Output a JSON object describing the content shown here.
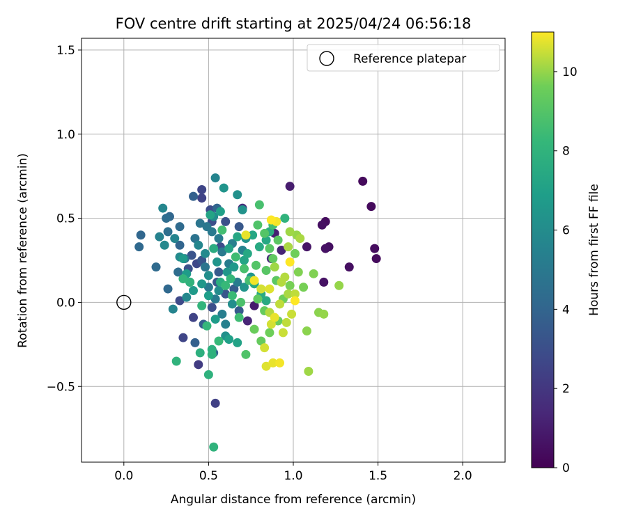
{
  "chart_data": {
    "type": "scatter",
    "title": "FOV centre drift starting at 2025/04/24 06:56:18",
    "xlabel": "Angular distance from reference (arcmin)",
    "ylabel": "Rotation from reference (arcmin)",
    "xlim": [
      -0.25,
      2.25
    ],
    "ylim": [
      -0.95,
      1.57
    ],
    "xticks": [
      0.0,
      0.5,
      1.0,
      1.5,
      2.0
    ],
    "xtick_labels": [
      "0.0",
      "0.5",
      "1.0",
      "1.5",
      "2.0"
    ],
    "yticks": [
      -0.5,
      0.0,
      0.5,
      1.0,
      1.5
    ],
    "ytick_labels": [
      "−0.5",
      "0.0",
      "0.5",
      "1.0",
      "1.5"
    ],
    "grid": true,
    "legend": {
      "placement": "top-right",
      "entries": [
        "Reference platepar"
      ]
    },
    "reference": {
      "x": 0.0,
      "y": 0.0,
      "label": "Reference platepar"
    },
    "colorbar": {
      "label": "Hours from first FF file",
      "colormap": "viridis",
      "range": [
        0,
        11
      ],
      "ticks": [
        0,
        2,
        4,
        6,
        8,
        10
      ],
      "tick_labels": [
        "0",
        "2",
        "4",
        "6",
        "8",
        "10"
      ]
    },
    "series": [
      {
        "points": [
          {
            "x": 1.41,
            "y": 0.72,
            "h": 0.3
          },
          {
            "x": 1.46,
            "y": 0.57,
            "h": 0.3
          },
          {
            "x": 1.48,
            "y": 0.32,
            "h": 0.4
          },
          {
            "x": 1.49,
            "y": 0.26,
            "h": 0.3
          },
          {
            "x": 1.33,
            "y": 0.21,
            "h": 0.5
          },
          {
            "x": 1.19,
            "y": 0.48,
            "h": 0.4
          },
          {
            "x": 1.17,
            "y": 0.46,
            "h": 0.5
          },
          {
            "x": 1.21,
            "y": 0.33,
            "h": 0.5
          },
          {
            "x": 1.19,
            "y": 0.32,
            "h": 0.6
          },
          {
            "x": 1.18,
            "y": 0.12,
            "h": 0.6
          },
          {
            "x": 1.08,
            "y": 0.33,
            "h": 0.7
          },
          {
            "x": 0.98,
            "y": 0.69,
            "h": 1.0
          },
          {
            "x": 0.93,
            "y": 0.31,
            "h": 1.2
          },
          {
            "x": 0.89,
            "y": 0.41,
            "h": 1.1
          },
          {
            "x": 0.77,
            "y": -0.02,
            "h": 0.9
          },
          {
            "x": 0.73,
            "y": -0.11,
            "h": 1.3
          },
          {
            "x": 0.87,
            "y": 0.26,
            "h": 1.5
          },
          {
            "x": 0.7,
            "y": 0.56,
            "h": 1.6
          },
          {
            "x": 0.54,
            "y": -0.6,
            "h": 2.4
          },
          {
            "x": 0.44,
            "y": -0.37,
            "h": 2.2
          },
          {
            "x": 0.35,
            "y": -0.21,
            "h": 2.6
          },
          {
            "x": 0.41,
            "y": -0.09,
            "h": 2.5
          },
          {
            "x": 0.46,
            "y": 0.67,
            "h": 2.6
          },
          {
            "x": 0.46,
            "y": 0.62,
            "h": 2.5
          },
          {
            "x": 0.51,
            "y": 0.55,
            "h": 2.9
          },
          {
            "x": 0.33,
            "y": 0.01,
            "h": 2.8
          },
          {
            "x": 0.52,
            "y": 0.48,
            "h": 3.0
          },
          {
            "x": 0.6,
            "y": 0.48,
            "h": 3.1
          },
          {
            "x": 0.43,
            "y": 0.23,
            "h": 2.7
          },
          {
            "x": 0.4,
            "y": 0.28,
            "h": 3.2
          },
          {
            "x": 0.46,
            "y": 0.25,
            "h": 3.3
          },
          {
            "x": 0.38,
            "y": 0.2,
            "h": 3.1
          },
          {
            "x": 0.52,
            "y": -0.03,
            "h": 3.0
          },
          {
            "x": 0.6,
            "y": 0.05,
            "h": 3.3
          },
          {
            "x": 0.57,
            "y": 0.33,
            "h": 2.9
          },
          {
            "x": 0.68,
            "y": 0.45,
            "h": 3.4
          },
          {
            "x": 0.56,
            "y": 0.18,
            "h": 3.5
          },
          {
            "x": 0.65,
            "y": 0.08,
            "h": 3.6
          },
          {
            "x": 0.55,
            "y": 0.12,
            "h": 3.4
          },
          {
            "x": 0.68,
            "y": -0.05,
            "h": 3.5
          },
          {
            "x": 0.47,
            "y": -0.13,
            "h": 3.7
          },
          {
            "x": 0.42,
            "y": -0.24,
            "h": 3.8
          },
          {
            "x": 0.53,
            "y": -0.3,
            "h": 3.9
          },
          {
            "x": 0.41,
            "y": 0.63,
            "h": 3.8
          },
          {
            "x": 0.55,
            "y": 0.56,
            "h": 4.0
          },
          {
            "x": 0.1,
            "y": 0.4,
            "h": 4.1
          },
          {
            "x": 0.09,
            "y": 0.33,
            "h": 4.2
          },
          {
            "x": 0.19,
            "y": 0.21,
            "h": 4.3
          },
          {
            "x": 0.26,
            "y": 0.08,
            "h": 4.2
          },
          {
            "x": 0.33,
            "y": 0.34,
            "h": 4.0
          },
          {
            "x": 0.33,
            "y": 0.45,
            "h": 4.3
          },
          {
            "x": 0.25,
            "y": 0.5,
            "h": 4.4
          },
          {
            "x": 0.27,
            "y": 0.51,
            "h": 4.1
          },
          {
            "x": 0.26,
            "y": 0.42,
            "h": 4.5
          },
          {
            "x": 0.32,
            "y": 0.18,
            "h": 4.4
          },
          {
            "x": 0.36,
            "y": 0.26,
            "h": 4.6
          },
          {
            "x": 0.39,
            "y": 0.12,
            "h": 4.5
          },
          {
            "x": 0.42,
            "y": 0.38,
            "h": 4.7
          },
          {
            "x": 0.45,
            "y": 0.47,
            "h": 4.8
          },
          {
            "x": 0.49,
            "y": 0.45,
            "h": 4.9
          },
          {
            "x": 0.48,
            "y": 0.21,
            "h": 4.8
          },
          {
            "x": 0.52,
            "y": 0.42,
            "h": 5.0
          },
          {
            "x": 0.56,
            "y": 0.38,
            "h": 5.1
          },
          {
            "x": 0.58,
            "y": 0.3,
            "h": 5.0
          },
          {
            "x": 0.62,
            "y": 0.23,
            "h": 5.2
          },
          {
            "x": 0.5,
            "y": 0.09,
            "h": 5.0
          },
          {
            "x": 0.54,
            "y": 0.02,
            "h": 5.1
          },
          {
            "x": 0.58,
            "y": -0.07,
            "h": 5.3
          },
          {
            "x": 0.6,
            "y": -0.13,
            "h": 5.4
          },
          {
            "x": 0.67,
            "y": 0.12,
            "h": 5.2
          },
          {
            "x": 0.64,
            "y": 0.35,
            "h": 5.4
          },
          {
            "x": 0.7,
            "y": 0.31,
            "h": 5.5
          },
          {
            "x": 0.54,
            "y": 0.74,
            "h": 5.6
          },
          {
            "x": 0.3,
            "y": 0.38,
            "h": 5.6
          },
          {
            "x": 0.23,
            "y": 0.56,
            "h": 5.7
          },
          {
            "x": 0.21,
            "y": 0.39,
            "h": 5.5
          },
          {
            "x": 0.24,
            "y": 0.34,
            "h": 5.8
          },
          {
            "x": 0.33,
            "y": 0.27,
            "h": 5.9
          },
          {
            "x": 0.29,
            "y": -0.04,
            "h": 5.6
          },
          {
            "x": 0.37,
            "y": 0.03,
            "h": 5.8
          },
          {
            "x": 0.44,
            "y": 0.34,
            "h": 5.7
          },
          {
            "x": 0.53,
            "y": 0.51,
            "h": 6.0
          },
          {
            "x": 0.48,
            "y": 0.29,
            "h": 5.9
          },
          {
            "x": 0.5,
            "y": 0.16,
            "h": 6.1
          },
          {
            "x": 0.56,
            "y": 0.07,
            "h": 6.0
          },
          {
            "x": 0.6,
            "y": -0.2,
            "h": 6.2
          },
          {
            "x": 0.64,
            "y": -0.01,
            "h": 6.1
          },
          {
            "x": 0.67,
            "y": 0.64,
            "h": 6.2
          },
          {
            "x": 0.7,
            "y": 0.55,
            "h": 6.3
          },
          {
            "x": 0.59,
            "y": 0.68,
            "h": 6.4
          },
          {
            "x": 0.72,
            "y": 0.38,
            "h": 6.3
          },
          {
            "x": 0.55,
            "y": 0.24,
            "h": 6.4
          },
          {
            "x": 0.61,
            "y": 0.18,
            "h": 6.5
          },
          {
            "x": 0.65,
            "y": 0.21,
            "h": 6.6
          },
          {
            "x": 0.71,
            "y": 0.09,
            "h": 6.4
          },
          {
            "x": 0.75,
            "y": 0.15,
            "h": 6.5
          },
          {
            "x": 0.46,
            "y": 0.11,
            "h": 6.6
          },
          {
            "x": 0.41,
            "y": 0.07,
            "h": 6.7
          },
          {
            "x": 0.37,
            "y": 0.17,
            "h": 6.8
          },
          {
            "x": 0.35,
            "y": 0.26,
            "h": 6.7
          },
          {
            "x": 0.5,
            "y": 0.04,
            "h": 6.9
          },
          {
            "x": 0.54,
            "y": -0.1,
            "h": 6.8
          },
          {
            "x": 0.62,
            "y": -0.22,
            "h": 7.0
          },
          {
            "x": 0.67,
            "y": -0.24,
            "h": 7.1
          },
          {
            "x": 0.57,
            "y": 0.54,
            "h": 7.0
          },
          {
            "x": 0.51,
            "y": 0.52,
            "h": 7.2
          },
          {
            "x": 0.62,
            "y": 0.32,
            "h": 7.1
          },
          {
            "x": 0.67,
            "y": 0.39,
            "h": 7.3
          },
          {
            "x": 0.71,
            "y": 0.25,
            "h": 7.2
          },
          {
            "x": 0.73,
            "y": 0.29,
            "h": 7.4
          },
          {
            "x": 0.76,
            "y": 0.4,
            "h": 7.3
          },
          {
            "x": 0.8,
            "y": 0.33,
            "h": 7.5
          },
          {
            "x": 0.84,
            "y": 0.37,
            "h": 7.4
          },
          {
            "x": 0.77,
            "y": 0.11,
            "h": 7.5
          },
          {
            "x": 0.81,
            "y": 0.05,
            "h": 7.6
          },
          {
            "x": 0.84,
            "y": 0.01,
            "h": 7.5
          },
          {
            "x": 0.86,
            "y": 0.42,
            "h": 7.7
          },
          {
            "x": 0.53,
            "y": 0.32,
            "h": 7.6
          },
          {
            "x": 0.57,
            "y": 0.12,
            "h": 7.7
          },
          {
            "x": 0.52,
            "y": -0.28,
            "h": 7.8
          },
          {
            "x": 0.52,
            "y": -0.31,
            "h": 7.9
          },
          {
            "x": 0.45,
            "y": -0.3,
            "h": 7.8
          },
          {
            "x": 0.5,
            "y": -0.43,
            "h": 7.9
          },
          {
            "x": 0.31,
            "y": -0.35,
            "h": 8.0
          },
          {
            "x": 0.53,
            "y": -0.86,
            "h": 8.0
          },
          {
            "x": 0.35,
            "y": 0.14,
            "h": 8.1
          },
          {
            "x": 0.39,
            "y": 0.12,
            "h": 8.0
          },
          {
            "x": 0.46,
            "y": -0.02,
            "h": 8.1
          },
          {
            "x": 0.49,
            "y": -0.14,
            "h": 8.2
          },
          {
            "x": 0.56,
            "y": -0.23,
            "h": 8.3
          },
          {
            "x": 0.63,
            "y": 0.14,
            "h": 8.2
          },
          {
            "x": 0.6,
            "y": 0.1,
            "h": 8.3
          },
          {
            "x": 0.64,
            "y": 0.04,
            "h": 8.4
          },
          {
            "x": 0.68,
            "y": -0.09,
            "h": 8.5
          },
          {
            "x": 0.58,
            "y": 0.43,
            "h": 8.6
          },
          {
            "x": 0.66,
            "y": 0.27,
            "h": 8.5
          },
          {
            "x": 0.71,
            "y": 0.2,
            "h": 8.7
          },
          {
            "x": 0.74,
            "y": 0.13,
            "h": 8.6
          },
          {
            "x": 0.69,
            "y": 0.0,
            "h": 8.8
          },
          {
            "x": 0.72,
            "y": -0.31,
            "h": 8.9
          },
          {
            "x": 0.8,
            "y": 0.58,
            "h": 8.7
          },
          {
            "x": 0.95,
            "y": 0.5,
            "h": 8.0
          },
          {
            "x": 0.88,
            "y": 0.46,
            "h": 8.6
          },
          {
            "x": 0.79,
            "y": 0.46,
            "h": 8.9
          },
          {
            "x": 0.83,
            "y": 0.41,
            "h": 9.0
          },
          {
            "x": 0.86,
            "y": 0.32,
            "h": 9.1
          },
          {
            "x": 0.91,
            "y": 0.37,
            "h": 9.2
          },
          {
            "x": 0.78,
            "y": 0.22,
            "h": 9.0
          },
          {
            "x": 0.84,
            "y": 0.19,
            "h": 9.1
          },
          {
            "x": 0.88,
            "y": 0.26,
            "h": 9.3
          },
          {
            "x": 0.9,
            "y": 0.13,
            "h": 9.2
          },
          {
            "x": 0.79,
            "y": 0.02,
            "h": 9.3
          },
          {
            "x": 0.83,
            "y": -0.05,
            "h": 9.4
          },
          {
            "x": 0.77,
            "y": -0.16,
            "h": 9.5
          },
          {
            "x": 0.81,
            "y": -0.23,
            "h": 9.4
          },
          {
            "x": 0.86,
            "y": -0.18,
            "h": 9.6
          },
          {
            "x": 0.91,
            "y": -0.11,
            "h": 9.5
          },
          {
            "x": 0.94,
            "y": 0.02,
            "h": 9.6
          },
          {
            "x": 0.98,
            "y": 0.1,
            "h": 9.7
          },
          {
            "x": 1.01,
            "y": 0.29,
            "h": 9.6
          },
          {
            "x": 1.03,
            "y": 0.18,
            "h": 9.8
          },
          {
            "x": 1.06,
            "y": 0.09,
            "h": 9.7
          },
          {
            "x": 1.08,
            "y": -0.17,
            "h": 9.9
          },
          {
            "x": 1.12,
            "y": 0.17,
            "h": 9.8
          },
          {
            "x": 1.15,
            "y": -0.06,
            "h": 9.9
          },
          {
            "x": 1.18,
            "y": -0.07,
            "h": 10.0
          },
          {
            "x": 1.27,
            "y": 0.1,
            "h": 10.0
          },
          {
            "x": 1.09,
            "y": -0.41,
            "h": 10.1
          },
          {
            "x": 0.98,
            "y": 0.42,
            "h": 10.1
          },
          {
            "x": 1.02,
            "y": 0.4,
            "h": 10.0
          },
          {
            "x": 0.97,
            "y": 0.33,
            "h": 10.2
          },
          {
            "x": 0.89,
            "y": 0.21,
            "h": 10.1
          },
          {
            "x": 0.93,
            "y": 0.12,
            "h": 10.3
          },
          {
            "x": 0.97,
            "y": 0.05,
            "h": 10.2
          },
          {
            "x": 0.92,
            "y": -0.01,
            "h": 10.4
          },
          {
            "x": 0.86,
            "y": -0.06,
            "h": 10.3
          },
          {
            "x": 0.99,
            "y": -0.07,
            "h": 10.5
          },
          {
            "x": 1.01,
            "y": 0.05,
            "h": 10.4
          },
          {
            "x": 0.94,
            "y": -0.18,
            "h": 10.5
          },
          {
            "x": 0.87,
            "y": -0.13,
            "h": 10.6
          },
          {
            "x": 0.83,
            "y": -0.27,
            "h": 10.6
          },
          {
            "x": 0.84,
            "y": -0.38,
            "h": 10.7
          },
          {
            "x": 0.88,
            "y": -0.36,
            "h": 10.8
          },
          {
            "x": 0.92,
            "y": -0.36,
            "h": 10.9
          },
          {
            "x": 0.72,
            "y": 0.4,
            "h": 10.8
          },
          {
            "x": 0.77,
            "y": 0.13,
            "h": 10.9
          },
          {
            "x": 0.87,
            "y": 0.49,
            "h": 11.0
          },
          {
            "x": 0.9,
            "y": 0.48,
            "h": 10.9
          },
          {
            "x": 0.98,
            "y": 0.24,
            "h": 11.0
          },
          {
            "x": 1.01,
            "y": 0.01,
            "h": 11.0
          },
          {
            "x": 0.86,
            "y": 0.08,
            "h": 10.7
          },
          {
            "x": 0.81,
            "y": 0.08,
            "h": 10.6
          },
          {
            "x": 1.04,
            "y": 0.38,
            "h": 10.2
          },
          {
            "x": 0.95,
            "y": 0.15,
            "h": 10.3
          },
          {
            "x": 0.89,
            "y": -0.09,
            "h": 10.8
          },
          {
            "x": 0.96,
            "y": -0.12,
            "h": 10.4
          }
        ]
      }
    ]
  }
}
